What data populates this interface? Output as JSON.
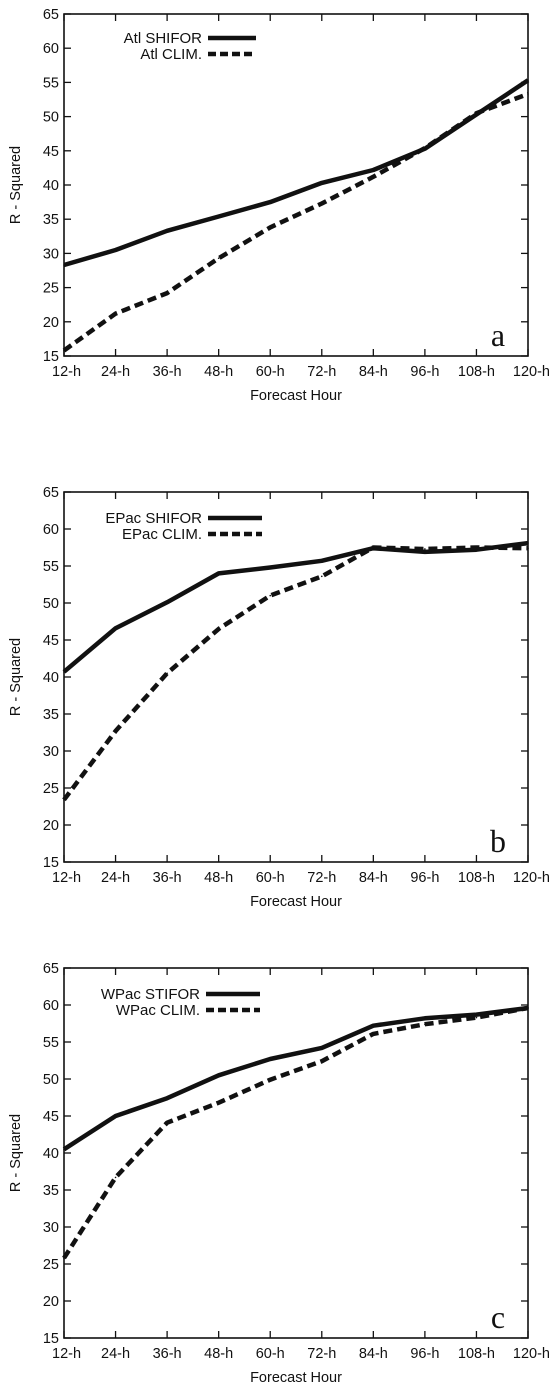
{
  "chart_data": [
    {
      "type": "line",
      "panel_label": "a",
      "categories": [
        "12-h",
        "24-h",
        "36-h",
        "48-h",
        "60-h",
        "72-h",
        "84-h",
        "96-h",
        "108-h",
        "120-h"
      ],
      "xlabel": "Forecast Hour",
      "ylabel": "R - Squared",
      "ylim": [
        15,
        65
      ],
      "yticks": [
        15,
        20,
        25,
        30,
        35,
        40,
        45,
        50,
        55,
        60,
        65
      ],
      "grid": false,
      "legend_position": "top-left",
      "series": [
        {
          "name": "Atl SHIFOR",
          "style": "solid",
          "values": [
            28.3,
            30.5,
            33.3,
            35.4,
            37.5,
            40.3,
            42.2,
            45.3,
            50.3,
            55.3
          ]
        },
        {
          "name": "Atl CLIM.",
          "style": "dashed",
          "values": [
            15.8,
            21.2,
            24.2,
            29.3,
            33.8,
            37.3,
            41.2,
            45.4,
            50.5,
            53.3
          ]
        }
      ]
    },
    {
      "type": "line",
      "panel_label": "b",
      "categories": [
        "12-h",
        "24-h",
        "36-h",
        "48-h",
        "60-h",
        "72-h",
        "84-h",
        "96-h",
        "108-h",
        "120-h"
      ],
      "xlabel": "Forecast Hour",
      "ylabel": "R - Squared",
      "ylim": [
        15,
        65
      ],
      "yticks": [
        15,
        20,
        25,
        30,
        35,
        40,
        45,
        50,
        55,
        60,
        65
      ],
      "grid": false,
      "legend_position": "top-left",
      "series": [
        {
          "name": "EPac SHIFOR",
          "style": "solid",
          "values": [
            40.7,
            46.6,
            50.1,
            54.0,
            54.8,
            55.7,
            57.4,
            56.9,
            57.2,
            58.1
          ]
        },
        {
          "name": "EPac CLIM.",
          "style": "dashed",
          "values": [
            23.4,
            32.7,
            40.5,
            46.5,
            51.0,
            53.6,
            57.5,
            57.3,
            57.5,
            57.4
          ]
        }
      ]
    },
    {
      "type": "line",
      "panel_label": "c",
      "categories": [
        "12-h",
        "24-h",
        "36-h",
        "48-h",
        "60-h",
        "72-h",
        "84-h",
        "96-h",
        "108-h",
        "120-h"
      ],
      "xlabel": "Forecast Hour",
      "ylabel": "R - Squared",
      "ylim": [
        15,
        65
      ],
      "yticks": [
        15,
        20,
        25,
        30,
        35,
        40,
        45,
        50,
        55,
        60,
        65
      ],
      "grid": false,
      "legend_position": "top-left",
      "series": [
        {
          "name": "WPac STIFOR",
          "style": "solid",
          "values": [
            40.5,
            45.0,
            47.4,
            50.5,
            52.7,
            54.2,
            57.2,
            58.2,
            58.7,
            59.6
          ]
        },
        {
          "name": "WPac CLIM.",
          "style": "dashed",
          "values": [
            25.8,
            36.7,
            44.1,
            46.8,
            49.9,
            52.4,
            56.1,
            57.4,
            58.3,
            59.6
          ]
        }
      ]
    }
  ]
}
